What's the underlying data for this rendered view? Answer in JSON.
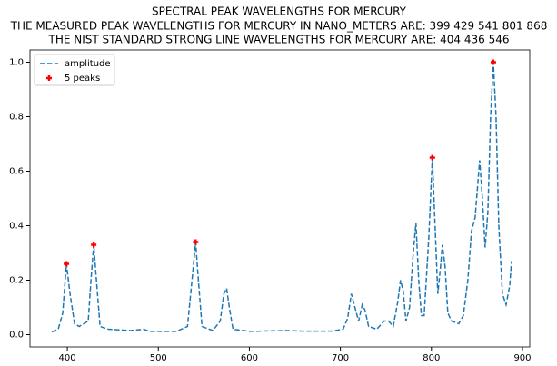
{
  "chart_data": {
    "type": "line",
    "title": "SPECTRAL PEAK WAVELENGTHS FOR MERCURY",
    "subtitle": [
      "THE MEASURED PEAK WAVELENGTHS FOR MERCURY IN NANO_METERS ARE: 399 429 541 801 868",
      "THE NIST STANDARD STRONG LINE WAVELENGTHS FOR MERCURY ARE: 404 436 546"
    ],
    "series": [
      {
        "name": "amplitude",
        "color": "#1f77b4",
        "type": "line",
        "dashed": true,
        "x": [
          383,
          390,
          395,
          399,
          403,
          408,
          413,
          418,
          423,
          426,
          429,
          432,
          436,
          445,
          470,
          484,
          490,
          520,
          532,
          537,
          541,
          544,
          548,
          560,
          568,
          572,
          575,
          578,
          582,
          600,
          640,
          660,
          690,
          703,
          708,
          712,
          716,
          720,
          724,
          727,
          731,
          740,
          748,
          753,
          758,
          763,
          766,
          769,
          772,
          776,
          780,
          783,
          786,
          789,
          792,
          797,
          801,
          804,
          807,
          810,
          812,
          815,
          818,
          822,
          830,
          835,
          840,
          844,
          848,
          853,
          856,
          859,
          862,
          865,
          868,
          871,
          874,
          878,
          882,
          886,
          888
        ],
        "values": [
          0.01,
          0.02,
          0.08,
          0.26,
          0.15,
          0.04,
          0.03,
          0.04,
          0.05,
          0.2,
          0.33,
          0.2,
          0.03,
          0.02,
          0.015,
          0.02,
          0.012,
          0.012,
          0.03,
          0.2,
          0.34,
          0.2,
          0.03,
          0.015,
          0.05,
          0.15,
          0.17,
          0.1,
          0.02,
          0.012,
          0.015,
          0.013,
          0.013,
          0.02,
          0.06,
          0.15,
          0.1,
          0.05,
          0.11,
          0.09,
          0.03,
          0.02,
          0.05,
          0.05,
          0.03,
          0.12,
          0.2,
          0.16,
          0.05,
          0.1,
          0.3,
          0.41,
          0.2,
          0.07,
          0.07,
          0.35,
          0.65,
          0.4,
          0.15,
          0.25,
          0.33,
          0.25,
          0.08,
          0.05,
          0.04,
          0.07,
          0.2,
          0.38,
          0.43,
          0.64,
          0.5,
          0.32,
          0.45,
          0.8,
          1.0,
          0.8,
          0.4,
          0.15,
          0.11,
          0.18,
          0.27
        ]
      },
      {
        "name": "5 peaks",
        "color": "#ff0000",
        "type": "scatter",
        "marker": "plus",
        "x": [
          399,
          429,
          541,
          801,
          868
        ],
        "values": [
          0.26,
          0.33,
          0.34,
          0.65,
          1.0
        ]
      }
    ],
    "xlim": [
      359,
      908
    ],
    "ylim": [
      -0.045,
      1.045
    ],
    "xticks": [
      400,
      500,
      600,
      700,
      800,
      900
    ],
    "yticks": [
      {
        "value": 0,
        "label": "0.0"
      },
      0.2,
      0.4,
      0.6,
      0.8,
      {
        "value": 1,
        "label": "1.0"
      }
    ],
    "grid": false,
    "legend": "upper left"
  }
}
